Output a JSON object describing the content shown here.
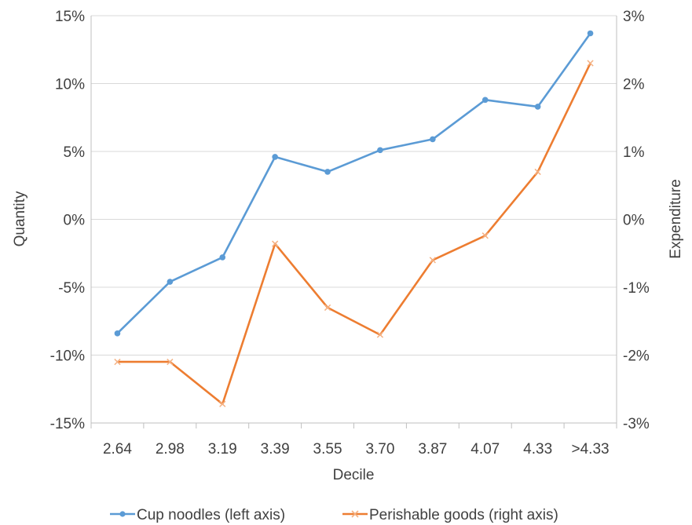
{
  "chart_data": {
    "type": "line",
    "title": "",
    "xlabel": "Decile",
    "ylabel_left": "Quantity",
    "ylabel_right": "Expenditure",
    "categories": [
      "2.64",
      "2.98",
      "3.19",
      "3.39",
      "3.55",
      "3.70",
      "3.87",
      "4.07",
      "4.33",
      ">4.33"
    ],
    "y_left": {
      "min": -15,
      "max": 15,
      "step": 5,
      "tick_labels": [
        "15%",
        "10%",
        "5%",
        "0%",
        "-5%",
        "-10%",
        "-15%"
      ]
    },
    "y_right": {
      "min": -3,
      "max": 3,
      "step": 1,
      "tick_labels": [
        "3%",
        "2%",
        "1%",
        "0%",
        "-1%",
        "-2%",
        "-3%"
      ]
    },
    "grid": true,
    "legend_position": "bottom",
    "series": [
      {
        "name": "Cup noodles (left axis)",
        "axis": "left",
        "color": "#5B9BD5",
        "marker": "circle",
        "values": [
          -8.4,
          -4.6,
          -2.8,
          4.6,
          3.5,
          5.1,
          5.9,
          8.8,
          8.3,
          13.7
        ]
      },
      {
        "name": "Perishable goods (right axis)",
        "axis": "right",
        "color": "#ED7D31",
        "marker": "x",
        "values": [
          -2.1,
          -2.1,
          -2.72,
          -0.36,
          -1.3,
          -1.7,
          -0.6,
          -0.24,
          0.7,
          2.3
        ]
      }
    ]
  }
}
